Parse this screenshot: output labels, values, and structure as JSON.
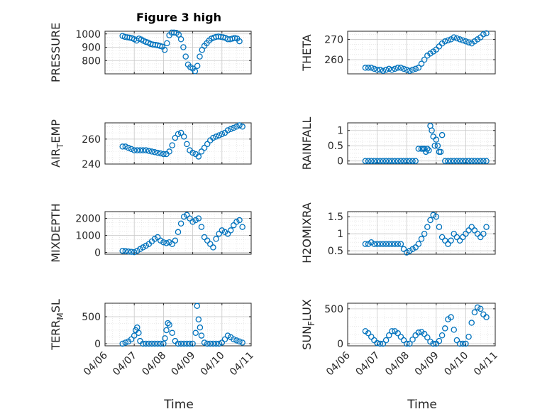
{
  "figure": {
    "title": "Figure 3 high",
    "xlabel": "Time"
  },
  "colors": {
    "marker": "#0072BD",
    "axis": "#262626",
    "grid": "#c8c8c8",
    "gridMinor": "#dedede"
  },
  "chart_data": [
    {
      "type": "scatter",
      "title": "Figure 3 high",
      "ylabel": "PRESSURE",
      "ylabel_sub": "",
      "ylim": [
        700,
        1020
      ],
      "yticks": [
        800,
        900,
        1000
      ],
      "xticks": [
        "04/06",
        "04/07",
        "04/08",
        "04/09",
        "04/10",
        "04/11"
      ],
      "xlim": [
        0,
        5
      ],
      "x": [
        0.6,
        0.68,
        0.76,
        0.84,
        0.92,
        1.0,
        1.08,
        1.16,
        1.24,
        1.32,
        1.4,
        1.48,
        1.56,
        1.64,
        1.72,
        1.8,
        1.88,
        1.96,
        2.04,
        2.12,
        2.2,
        2.28,
        2.36,
        2.44,
        2.52,
        2.6,
        2.68,
        2.76,
        2.84,
        2.92,
        3.0,
        3.08,
        3.16,
        3.24,
        3.32,
        3.4,
        3.48,
        3.56,
        3.64,
        3.72,
        3.8,
        3.88,
        3.96,
        4.04,
        4.12,
        4.2,
        4.28,
        4.36,
        4.44,
        4.52,
        4.6
      ],
      "y": [
        985,
        978,
        975,
        972,
        968,
        960,
        950,
        965,
        958,
        948,
        940,
        935,
        925,
        920,
        918,
        915,
        910,
        905,
        880,
        930,
        990,
        1010,
        1010,
        1008,
        995,
        960,
        900,
        830,
        770,
        750,
        740,
        720,
        760,
        830,
        880,
        910,
        930,
        950,
        965,
        972,
        978,
        980,
        978,
        975,
        970,
        960,
        960,
        965,
        970,
        965,
        945
      ]
    },
    {
      "type": "scatter",
      "ylabel": "THETA",
      "ylabel_sub": "",
      "ylim": [
        253,
        274
      ],
      "yticks": [
        260,
        270
      ],
      "xticks": [
        "04/06",
        "04/07",
        "04/08",
        "04/09",
        "04/10",
        "04/11"
      ],
      "xlim": [
        0,
        5
      ],
      "x": [
        0.6,
        0.7,
        0.8,
        0.9,
        1.0,
        1.1,
        1.2,
        1.3,
        1.4,
        1.5,
        1.6,
        1.7,
        1.8,
        1.9,
        2.0,
        2.1,
        2.2,
        2.3,
        2.4,
        2.5,
        2.6,
        2.7,
        2.8,
        2.9,
        3.0,
        3.1,
        3.2,
        3.3,
        3.4,
        3.5,
        3.6,
        3.7,
        3.8,
        3.9,
        4.0,
        4.1,
        4.2,
        4.3,
        4.4,
        4.5,
        4.6,
        4.7
      ],
      "y": [
        256,
        256,
        256,
        255.5,
        255,
        255,
        254.5,
        255,
        255.5,
        255,
        255.5,
        256,
        256,
        255.5,
        255,
        254.5,
        255,
        255.5,
        256,
        258,
        260,
        262,
        263,
        264,
        265,
        266.5,
        268,
        269,
        269.5,
        270,
        271,
        270.5,
        270,
        269.5,
        269,
        268.5,
        268,
        269,
        270,
        271,
        272.5,
        273
      ]
    },
    {
      "type": "scatter",
      "ylabel": "AIR",
      "ylabel_sub": "T",
      "ylabel_post": "EMP",
      "ylim": [
        240,
        273
      ],
      "yticks": [
        240,
        260
      ],
      "xticks": [
        "04/06",
        "04/07",
        "04/08",
        "04/09",
        "04/10",
        "04/11"
      ],
      "xlim": [
        0,
        5
      ],
      "x": [
        0.6,
        0.7,
        0.8,
        0.9,
        1.0,
        1.1,
        1.2,
        1.3,
        1.4,
        1.5,
        1.6,
        1.7,
        1.8,
        1.9,
        2.0,
        2.1,
        2.2,
        2.3,
        2.4,
        2.5,
        2.6,
        2.7,
        2.8,
        2.9,
        3.0,
        3.1,
        3.2,
        3.3,
        3.4,
        3.5,
        3.6,
        3.7,
        3.8,
        3.9,
        4.0,
        4.1,
        4.2,
        4.3,
        4.4,
        4.5,
        4.6,
        4.7
      ],
      "y": [
        254,
        254,
        253,
        252,
        251,
        251,
        251,
        251,
        251,
        250.5,
        250,
        249.5,
        249,
        248.5,
        248,
        248,
        250,
        255,
        261,
        264,
        265,
        262,
        256,
        251,
        249,
        248,
        246,
        250,
        253,
        256,
        259,
        261,
        262,
        263,
        264,
        265,
        267,
        268,
        269,
        270,
        271,
        270
      ]
    },
    {
      "type": "scatter",
      "ylabel": "RAINFALL",
      "ylabel_sub": "",
      "ylim": [
        -0.1,
        1.25
      ],
      "yticks": [
        0,
        0.5,
        1
      ],
      "xticks": [
        "04/06",
        "04/07",
        "04/08",
        "04/09",
        "04/10",
        "04/11"
      ],
      "xlim": [
        0,
        5
      ],
      "x": [
        0.6,
        0.7,
        0.8,
        0.9,
        1.0,
        1.1,
        1.2,
        1.3,
        1.4,
        1.5,
        1.6,
        1.7,
        1.8,
        1.9,
        2.0,
        2.1,
        2.2,
        2.3,
        2.4,
        2.5,
        2.55,
        2.6,
        2.65,
        2.7,
        2.75,
        2.8,
        2.85,
        2.9,
        2.95,
        3.0,
        3.05,
        3.1,
        3.15,
        3.2,
        3.3,
        3.4,
        3.5,
        3.6,
        3.7,
        3.8,
        3.9,
        4.0,
        4.1,
        4.2,
        4.3,
        4.4,
        4.5,
        4.6,
        4.7
      ],
      "y": [
        0,
        0,
        0,
        0,
        0,
        0,
        0,
        0,
        0,
        0,
        0,
        0,
        0,
        0,
        0,
        0,
        0,
        0,
        0.4,
        0.4,
        0.4,
        0.4,
        0.3,
        0.4,
        0.35,
        1.15,
        1.0,
        0.8,
        0.5,
        0.7,
        0.5,
        0.3,
        0.3,
        0.85,
        0,
        0,
        0,
        0,
        0,
        0,
        0,
        0,
        0,
        0,
        0,
        0,
        0,
        0,
        0
      ]
    },
    {
      "type": "scatter",
      "ylabel": "MIXDEPTH",
      "ylabel_sub": "",
      "ylim": [
        -100,
        2400
      ],
      "yticks": [
        0,
        1000,
        2000
      ],
      "xticks": [
        "04/06",
        "04/07",
        "04/08",
        "04/09",
        "04/10",
        "04/11"
      ],
      "xlim": [
        0,
        5
      ],
      "x": [
        0.6,
        0.7,
        0.8,
        0.9,
        1.0,
        1.1,
        1.2,
        1.3,
        1.4,
        1.5,
        1.6,
        1.7,
        1.8,
        1.9,
        2.0,
        2.1,
        2.2,
        2.3,
        2.4,
        2.5,
        2.6,
        2.7,
        2.8,
        2.9,
        3.0,
        3.1,
        3.2,
        3.3,
        3.4,
        3.5,
        3.6,
        3.7,
        3.8,
        3.9,
        4.0,
        4.1,
        4.2,
        4.3,
        4.4,
        4.5,
        4.6,
        4.7
      ],
      "y": [
        100,
        80,
        60,
        40,
        20,
        100,
        200,
        300,
        400,
        500,
        650,
        800,
        900,
        700,
        600,
        550,
        600,
        500,
        700,
        1200,
        1700,
        2100,
        2200,
        2000,
        1800,
        1900,
        2000,
        1500,
        900,
        700,
        500,
        300,
        800,
        1100,
        1300,
        1200,
        1100,
        1300,
        1600,
        1800,
        1900,
        1500
      ]
    },
    {
      "type": "scatter",
      "ylabel": "H2OMIXRA",
      "ylabel_sub": "",
      "ylim": [
        0.4,
        1.65
      ],
      "yticks": [
        0.5,
        1,
        1.5
      ],
      "xticks": [
        "04/06",
        "04/07",
        "04/08",
        "04/09",
        "04/10",
        "04/11"
      ],
      "xlim": [
        0,
        5
      ],
      "x": [
        0.6,
        0.7,
        0.8,
        0.9,
        1.0,
        1.1,
        1.2,
        1.3,
        1.4,
        1.5,
        1.6,
        1.7,
        1.8,
        1.9,
        2.0,
        2.1,
        2.2,
        2.3,
        2.4,
        2.5,
        2.6,
        2.7,
        2.8,
        2.9,
        3.0,
        3.1,
        3.2,
        3.3,
        3.4,
        3.5,
        3.6,
        3.7,
        3.8,
        3.9,
        4.0,
        4.1,
        4.2,
        4.3,
        4.4,
        4.5,
        4.6,
        4.7
      ],
      "y": [
        0.7,
        0.7,
        0.75,
        0.7,
        0.7,
        0.7,
        0.7,
        0.7,
        0.7,
        0.7,
        0.7,
        0.7,
        0.7,
        0.55,
        0.45,
        0.5,
        0.55,
        0.6,
        0.7,
        0.85,
        1.0,
        1.2,
        1.4,
        1.55,
        1.5,
        1.2,
        0.9,
        0.8,
        0.7,
        0.8,
        1.0,
        0.9,
        0.8,
        0.9,
        1.0,
        1.1,
        1.2,
        1.1,
        1.0,
        0.9,
        1.0,
        1.2
      ]
    },
    {
      "type": "scatter",
      "ylabel": "TERR",
      "ylabel_sub": "M",
      "ylabel_post": "SL",
      "ylim": [
        -40,
        750
      ],
      "yticks": [
        0,
        500
      ],
      "xticks": [
        "04/06",
        "04/07",
        "04/08",
        "04/09",
        "04/10",
        "04/11"
      ],
      "xlim": [
        0,
        5
      ],
      "x": [
        0.6,
        0.7,
        0.8,
        0.9,
        1.0,
        1.05,
        1.1,
        1.15,
        1.2,
        1.3,
        1.4,
        1.5,
        1.6,
        1.7,
        1.8,
        1.9,
        2.0,
        2.05,
        2.1,
        2.15,
        2.2,
        2.3,
        2.4,
        2.5,
        2.6,
        2.7,
        2.8,
        2.9,
        3.0,
        3.1,
        3.15,
        3.2,
        3.25,
        3.3,
        3.4,
        3.5,
        3.6,
        3.7,
        3.8,
        3.9,
        4.0,
        4.1,
        4.2,
        4.3,
        4.4,
        4.5,
        4.6,
        4.7
      ],
      "y": [
        0,
        20,
        40,
        80,
        150,
        250,
        300,
        200,
        50,
        0,
        0,
        0,
        0,
        0,
        0,
        0,
        0,
        100,
        250,
        380,
        350,
        200,
        50,
        0,
        0,
        0,
        0,
        0,
        0,
        200,
        700,
        450,
        300,
        150,
        20,
        0,
        0,
        0,
        0,
        0,
        20,
        80,
        150,
        120,
        80,
        60,
        40,
        20
      ]
    },
    {
      "type": "scatter",
      "ylabel": "SUN",
      "ylabel_sub": "F",
      "ylabel_post": "LUX",
      "ylim": [
        -30,
        580
      ],
      "yticks": [
        0,
        500
      ],
      "xticks": [
        "04/06",
        "04/07",
        "04/08",
        "04/09",
        "04/10",
        "04/11"
      ],
      "xlim": [
        0,
        5
      ],
      "x": [
        0.6,
        0.7,
        0.8,
        0.9,
        1.0,
        1.1,
        1.2,
        1.3,
        1.4,
        1.5,
        1.6,
        1.7,
        1.8,
        1.9,
        2.0,
        2.1,
        2.2,
        2.3,
        2.4,
        2.5,
        2.6,
        2.7,
        2.8,
        2.9,
        3.0,
        3.1,
        3.2,
        3.3,
        3.4,
        3.5,
        3.6,
        3.7,
        3.8,
        3.9,
        4.0,
        4.1,
        4.2,
        4.3,
        4.4,
        4.5,
        4.6,
        4.7
      ],
      "y": [
        180,
        150,
        100,
        50,
        10,
        0,
        0,
        50,
        120,
        180,
        180,
        150,
        100,
        50,
        0,
        0,
        60,
        120,
        160,
        170,
        140,
        90,
        30,
        0,
        0,
        40,
        120,
        220,
        350,
        380,
        200,
        50,
        0,
        0,
        0,
        100,
        300,
        450,
        520,
        500,
        420,
        380
      ]
    }
  ]
}
